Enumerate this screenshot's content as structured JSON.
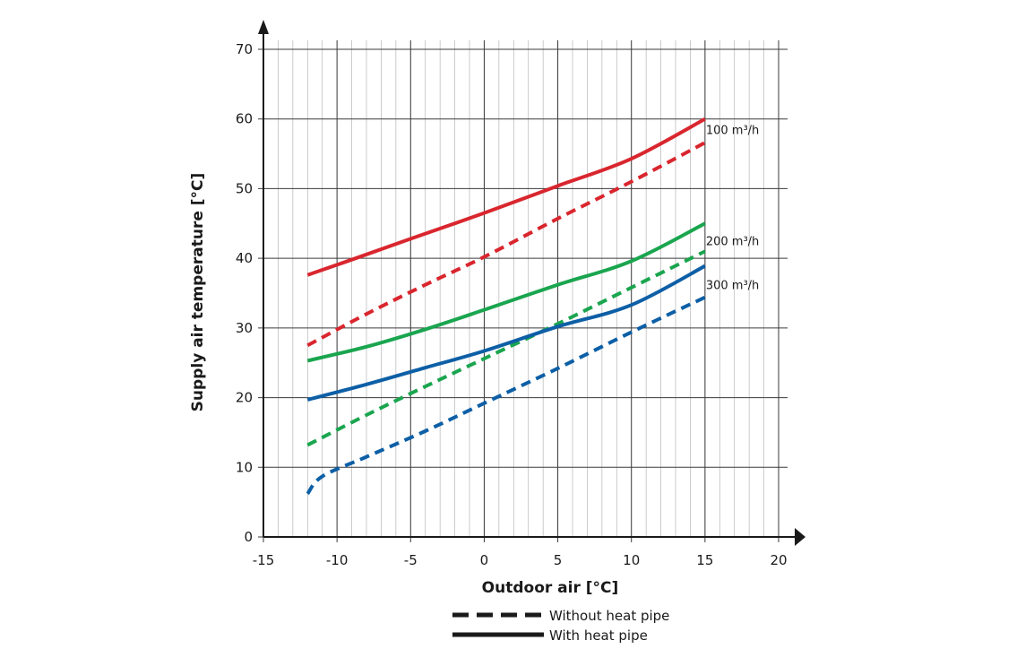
{
  "chart_data": {
    "type": "line",
    "title": "",
    "xlabel": "Outdoor air [°C]",
    "ylabel": "Supply air temperature [°C]",
    "xlim": [
      -15,
      20
    ],
    "ylim": [
      0,
      70
    ],
    "x_ticks": [
      -15,
      -10,
      -5,
      0,
      5,
      10,
      15,
      20
    ],
    "y_ticks": [
      0,
      10,
      20,
      30,
      40,
      50,
      60,
      70
    ],
    "grid": true,
    "minor_grid_x_step": 1,
    "colors": {
      "100": "#d9262e",
      "200": "#1aa54f",
      "300": "#0d5fa6"
    },
    "airflow_labels": [
      {
        "text": "100 m³/h",
        "at_y": 58.5,
        "color_key": "100"
      },
      {
        "text": "200 m³/h",
        "at_y": 42.5,
        "color_key": "200"
      },
      {
        "text": "300 m³/h",
        "at_y": 36.2,
        "color_key": "300"
      }
    ],
    "series": [
      {
        "flow": "100",
        "style": "solid",
        "x": [
          -12,
          -9,
          -5,
          0,
          5,
          10,
          15
        ],
        "y": [
          37.6,
          39.8,
          42.8,
          46.5,
          50.4,
          54.3,
          60.0
        ]
      },
      {
        "flow": "100",
        "style": "dashed",
        "x": [
          -12,
          -8,
          -4,
          0,
          5,
          10,
          15
        ],
        "y": [
          27.5,
          32.0,
          36.2,
          40.2,
          45.7,
          51.0,
          56.6
        ]
      },
      {
        "flow": "200",
        "style": "solid",
        "x": [
          -12,
          -8,
          -4,
          0,
          5,
          10,
          15
        ],
        "y": [
          25.3,
          27.3,
          29.8,
          32.6,
          36.2,
          39.6,
          45.0
        ]
      },
      {
        "flow": "200",
        "style": "dashed",
        "x": [
          -12,
          -8,
          -4,
          0,
          5,
          10,
          15
        ],
        "y": [
          13.2,
          17.5,
          21.6,
          25.6,
          30.6,
          35.8,
          41.0
        ]
      },
      {
        "flow": "300",
        "style": "solid",
        "x": [
          -12,
          -8,
          -4,
          0,
          5,
          10,
          15
        ],
        "y": [
          19.7,
          21.9,
          24.3,
          26.7,
          30.2,
          33.3,
          38.9
        ]
      },
      {
        "flow": "300",
        "style": "dashed",
        "x": [
          -12,
          -11,
          -8,
          -4,
          0,
          5,
          10,
          15
        ],
        "y": [
          6.2,
          8.7,
          11.5,
          15.2,
          19.2,
          24.2,
          29.4,
          34.4
        ]
      }
    ],
    "legend": {
      "position": "bottom-center",
      "items": [
        {
          "style": "dashed",
          "label": "Without heat pipe"
        },
        {
          "style": "solid",
          "label": "With heat pipe"
        }
      ]
    }
  }
}
